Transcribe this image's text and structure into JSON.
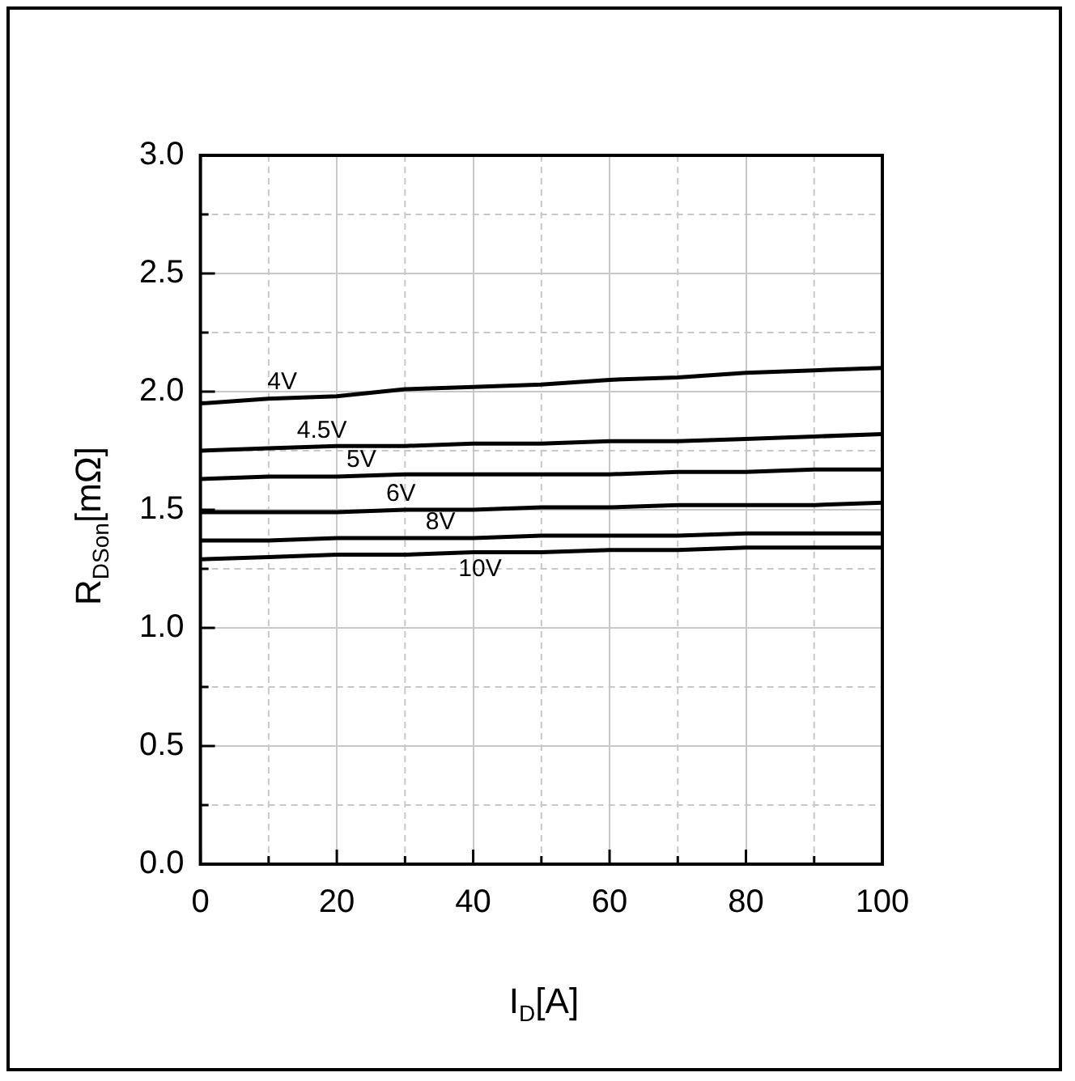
{
  "chart_data": {
    "type": "line",
    "xlabel": "I$_{D}$[A]",
    "ylabel": "R$_{DSon}$[mΩ]",
    "xlim": [
      0,
      100
    ],
    "xticks": [
      0,
      20,
      40,
      60,
      80,
      100
    ],
    "ylim": [
      0,
      3
    ],
    "yticks": [
      {
        "value": 0,
        "label": "0.0"
      },
      0.5,
      {
        "value": 1,
        "label": "1.0"
      },
      1.5,
      {
        "value": 2,
        "label": "2.0"
      },
      2.5,
      {
        "value": 3,
        "label": "3.0"
      }
    ],
    "grid": true,
    "legend": false,
    "marker": "none",
    "line_style": "solid",
    "x": [
      0,
      10,
      20,
      30,
      40,
      50,
      60,
      70,
      80,
      90,
      100
    ],
    "series": [
      {
        "name": "4V",
        "color": "#000000",
        "values": [
          1.95,
          1.97,
          1.98,
          2.01,
          2.02,
          2.03,
          2.05,
          2.06,
          2.08,
          2.09,
          2.1
        ]
      },
      {
        "name": "4.5V",
        "color": "#000000",
        "values": [
          1.75,
          1.76,
          1.77,
          1.77,
          1.78,
          1.78,
          1.79,
          1.79,
          1.8,
          1.81,
          1.82
        ]
      },
      {
        "name": "5V",
        "color": "#000000",
        "values": [
          1.63,
          1.64,
          1.64,
          1.65,
          1.65,
          1.65,
          1.65,
          1.66,
          1.66,
          1.67,
          1.67
        ]
      },
      {
        "name": "6V",
        "color": "#000000",
        "values": [
          1.49,
          1.49,
          1.49,
          1.5,
          1.5,
          1.51,
          1.51,
          1.52,
          1.52,
          1.52,
          1.53
        ]
      },
      {
        "name": "8V",
        "color": "#000000",
        "values": [
          1.37,
          1.37,
          1.38,
          1.38,
          1.38,
          1.39,
          1.39,
          1.39,
          1.4,
          1.4,
          1.4
        ]
      },
      {
        "name": "10V",
        "color": "#000000",
        "values": [
          1.29,
          1.3,
          1.31,
          1.31,
          1.32,
          1.32,
          1.33,
          1.33,
          1.34,
          1.34,
          1.34
        ]
      }
    ]
  }
}
